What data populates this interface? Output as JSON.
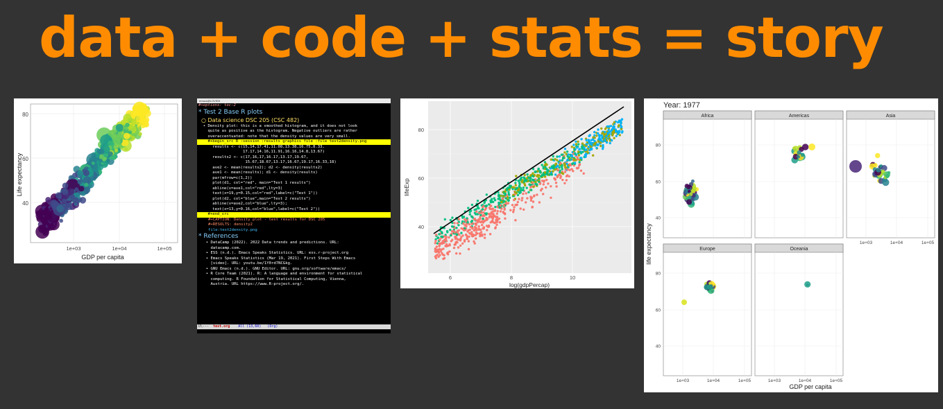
{
  "title": "data + code + stats = story",
  "colors": {
    "accent": "#ff8c00",
    "background": "#333333"
  },
  "panel1": {
    "xlabel": "GDP per capita",
    "ylabel": "Life expectancy",
    "xticks": [
      "1e+03",
      "1e+04",
      "1e+05"
    ],
    "yticks": [
      "80",
      "60",
      "40"
    ]
  },
  "panel2": {
    "window_title": "emacs@LOVIE8",
    "lines": [
      {
        "cls": "opt",
        "text": "#+options: toc:2"
      },
      {
        "cls": "h1",
        "text": "* Test 2 Base R plots"
      },
      {
        "cls": "h2",
        "text": "○ Data science DSC 205 (CSC 482)"
      },
      {
        "cls": "code",
        "text": ""
      },
      {
        "cls": "code",
        "text": "  • Density plot: this is a smoothed histogram, and it does not look"
      },
      {
        "cls": "code",
        "text": "    quite as positive as the histogram. Negative outliers are rather"
      },
      {
        "cls": "code",
        "text": "    overaccentuated: note that the density values are very small."
      },
      {
        "cls": "code",
        "text": ""
      },
      {
        "cls": "src-mark",
        "text": "    #+begin_src R :session :results graphics file :file test2density.png"
      },
      {
        "cls": "code",
        "text": "      results <- c(15,14,17.41,11.08,13.38,16.75,8.33,"
      },
      {
        "cls": "code",
        "text": "                   17.17,14.16,11.91,16.16,14.8,13.67)"
      },
      {
        "cls": "code",
        "text": "      results2 <- c(17,16,17,16.17,13.17,19.67,"
      },
      {
        "cls": "code",
        "text": "                    15.67,18.67,13.17,16.67,19.17,16.33,18)"
      },
      {
        "cls": "code",
        "text": "      ave2 <- mean(results2); d2 <- density(results2)"
      },
      {
        "cls": "code",
        "text": "      ave1 <- mean(results); d1 <- density(results)"
      },
      {
        "cls": "code",
        "text": "      par(mfrow=c(1,2))"
      },
      {
        "cls": "code",
        "text": "      plot(d1, col=\"red\", main=\"Test 1 results\")"
      },
      {
        "cls": "code",
        "text": "      abline(v=ave1,col=\"red\",lty=3)"
      },
      {
        "cls": "code",
        "text": "      text(x=19,y=0.15,col=\"red\",label=c(\"Test 1\"))"
      },
      {
        "cls": "code",
        "text": "      plot(d2, col=\"blue\",main=\"Test 2 results\")"
      },
      {
        "cls": "code",
        "text": "      abline(v=ave2,col=\"blue\",lty=3);"
      },
      {
        "cls": "code",
        "text": "      text(x=13,y=0.16,col=\"blue\",label=c(\"Test 2\"))"
      },
      {
        "cls": "src-mark",
        "text": "    #+end_src"
      },
      {
        "cls": "code",
        "text": ""
      },
      {
        "cls": "caption",
        "text": "#+CAPTION: Density plot - test results for DSC 205"
      },
      {
        "cls": "caption",
        "text": "#+RESULTS: density2"
      },
      {
        "cls": "link",
        "text": "file:test2density.png"
      },
      {
        "cls": "code",
        "text": ""
      },
      {
        "cls": "code",
        "text": ""
      },
      {
        "cls": "h1",
        "text": "* References"
      },
      {
        "cls": "ref",
        "text": "  • DataCamp (2022). 2022 Data trends and predictions. URL:"
      },
      {
        "cls": "ref",
        "text": "    datacamp.com."
      },
      {
        "cls": "ref",
        "text": "  • ESS (n.d.). Emacs Speaks Statistics. URL: ess.r-project.org"
      },
      {
        "cls": "ref",
        "text": "  • Emacs Speaks Statistics (Mar 19, 2021). First Steps With Emacs"
      },
      {
        "cls": "ref",
        "text": "    [video]. URL: youtu.be/1Y0rd7NCGkg."
      },
      {
        "cls": "ref",
        "text": "  • GNU Emacs (n.d.). GNU Editor. URL: gnu.org/software/emacs/"
      },
      {
        "cls": "ref",
        "text": "  • R Core Team (2021). R: A language and environment for statistical"
      },
      {
        "cls": "ref",
        "text": "    computing. R Foundation for Statistical Computing, Vienna,"
      },
      {
        "cls": "ref",
        "text": "    Austria. URL https://www.R-project.org/."
      }
    ],
    "modeline": {
      "prefix": "U\\---  ",
      "buffer": "test.org",
      "position": "    All (13,60)   (Org)"
    }
  },
  "panel3": {
    "xlabel": "log(gdpPercap)",
    "ylabel": "lifeExp",
    "xticks": [
      "6",
      "8",
      "10"
    ],
    "yticks": [
      "80",
      "60",
      "40"
    ]
  },
  "panel4": {
    "header": "Year: 1977",
    "facets": [
      "Africa",
      "Americas",
      "Asia",
      "Europe",
      "Oceania"
    ],
    "xlabel": "GDP per capita",
    "ylabel": "life expectancy",
    "xticks": [
      "1e+03",
      "1e+04",
      "1e+05"
    ],
    "yticks": [
      "80",
      "60",
      "40"
    ]
  }
}
